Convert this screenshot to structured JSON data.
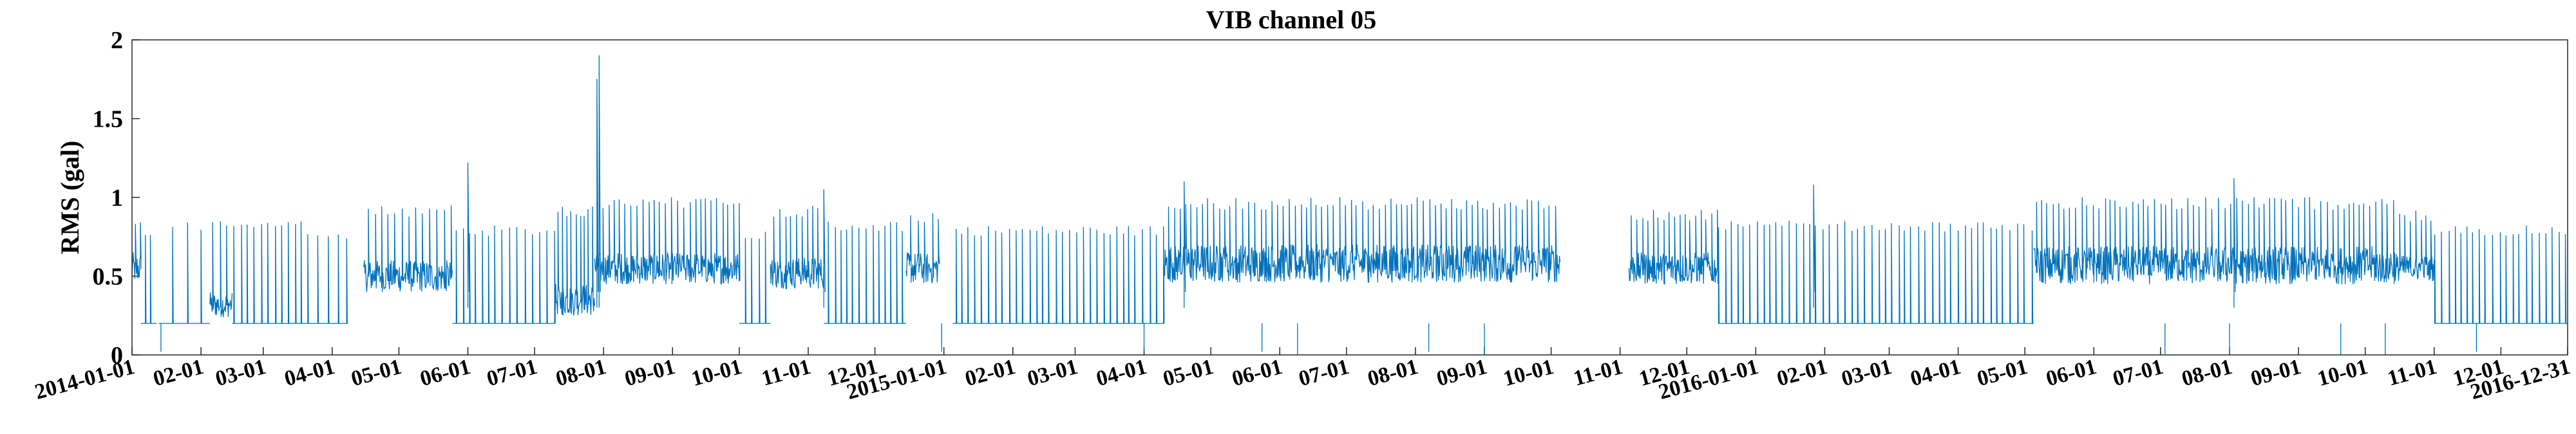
{
  "chart_data": {
    "type": "line",
    "title": "VIB channel 05",
    "ylabel": "RMS (gal)",
    "xlabel": "",
    "ylim": [
      0,
      2
    ],
    "y_ticks": [
      "0",
      "0.5",
      "1",
      "1.5",
      "2"
    ],
    "x_range": [
      "2014-01-01",
      "2016-12-31"
    ],
    "x_tick_labels": [
      {
        "date": "2014-01-01",
        "label": "2014-01-01"
      },
      {
        "date": "2014-02-01",
        "label": "02-01"
      },
      {
        "date": "2014-03-01",
        "label": "03-01"
      },
      {
        "date": "2014-04-01",
        "label": "04-01"
      },
      {
        "date": "2014-05-01",
        "label": "05-01"
      },
      {
        "date": "2014-06-01",
        "label": "06-01"
      },
      {
        "date": "2014-07-01",
        "label": "07-01"
      },
      {
        "date": "2014-08-01",
        "label": "08-01"
      },
      {
        "date": "2014-09-01",
        "label": "09-01"
      },
      {
        "date": "2014-10-01",
        "label": "10-01"
      },
      {
        "date": "2014-11-01",
        "label": "11-01"
      },
      {
        "date": "2014-12-01",
        "label": "12-01"
      },
      {
        "date": "2015-01-01",
        "label": "2015-01-01"
      },
      {
        "date": "2015-02-01",
        "label": "02-01"
      },
      {
        "date": "2015-03-01",
        "label": "03-01"
      },
      {
        "date": "2015-04-01",
        "label": "04-01"
      },
      {
        "date": "2015-05-01",
        "label": "05-01"
      },
      {
        "date": "2015-06-01",
        "label": "06-01"
      },
      {
        "date": "2015-07-01",
        "label": "07-01"
      },
      {
        "date": "2015-08-01",
        "label": "08-01"
      },
      {
        "date": "2015-09-01",
        "label": "09-01"
      },
      {
        "date": "2015-10-01",
        "label": "10-01"
      },
      {
        "date": "2015-11-01",
        "label": "11-01"
      },
      {
        "date": "2015-12-01",
        "label": "12-01"
      },
      {
        "date": "2016-01-01",
        "label": "2016-01-01"
      },
      {
        "date": "2016-02-01",
        "label": "02-01"
      },
      {
        "date": "2016-03-01",
        "label": "03-01"
      },
      {
        "date": "2016-04-01",
        "label": "04-01"
      },
      {
        "date": "2016-05-01",
        "label": "05-01"
      },
      {
        "date": "2016-06-01",
        "label": "06-01"
      },
      {
        "date": "2016-07-01",
        "label": "07-01"
      },
      {
        "date": "2016-08-01",
        "label": "08-01"
      },
      {
        "date": "2016-09-01",
        "label": "09-01"
      },
      {
        "date": "2016-10-01",
        "label": "10-01"
      },
      {
        "date": "2016-11-01",
        "label": "11-01"
      },
      {
        "date": "2016-12-01",
        "label": "12-01"
      },
      {
        "date": "2016-12-31",
        "label": "2016-12-31"
      }
    ],
    "line_color": "#0072bd",
    "grid": false,
    "legend": "none",
    "series": [
      {
        "segments": [
          {
            "start": "2014-01-01",
            "end": "2014-01-05",
            "base": 0.2,
            "level": 0.55,
            "noise": 0.1,
            "spike_every_days": 2,
            "spike_height": 0.85
          },
          {
            "start": "2014-01-05",
            "end": "2014-01-12",
            "base": 0.2,
            "level": 0.2,
            "noise": 0.0,
            "spike_every_days": 2.5,
            "spike_height": 0.8
          },
          {
            "start": "2014-01-13",
            "end": "2014-02-05",
            "base": 0.2,
            "level": 0.2,
            "noise": 0.0,
            "spike_every_days": 7,
            "spike_height": 0.85
          },
          {
            "start": "2014-02-05",
            "end": "2014-02-15",
            "base": 0.2,
            "level": 0.32,
            "noise": 0.08,
            "spike_every_days": 3,
            "spike_height": 0.85
          },
          {
            "start": "2014-02-15",
            "end": "2014-03-20",
            "base": 0.2,
            "level": 0.2,
            "noise": 0.0,
            "spike_every_days": 3,
            "spike_height": 0.85
          },
          {
            "start": "2014-03-20",
            "end": "2014-04-08",
            "base": 0.0,
            "level": 0.2,
            "noise": 0.0,
            "spike_every_days": 4,
            "spike_height": 0.8
          },
          {
            "start": "2014-04-15",
            "end": "2014-05-25",
            "base": 0.2,
            "level": 0.5,
            "noise": 0.1,
            "spike_every_days": 3,
            "spike_height": 0.95
          },
          {
            "start": "2014-05-25",
            "end": "2014-07-10",
            "base": 0.2,
            "level": 0.2,
            "noise": 0.0,
            "spike_every_days": 3,
            "spike_height": 0.82
          },
          {
            "start": "2014-07-10",
            "end": "2014-07-28",
            "base": 0.2,
            "level": 0.35,
            "noise": 0.1,
            "spike_every_days": 2,
            "spike_height": 0.95
          },
          {
            "start": "2014-07-28",
            "end": "2014-10-01",
            "base": 0.2,
            "level": 0.55,
            "noise": 0.1,
            "spike_every_days": 2.5,
            "spike_height": 1.0
          },
          {
            "start": "2014-10-01",
            "end": "2014-10-15",
            "base": 0.2,
            "level": 0.2,
            "noise": 0.0,
            "spike_every_days": 3,
            "spike_height": 0.8
          },
          {
            "start": "2014-10-15",
            "end": "2014-11-08",
            "base": 0.2,
            "level": 0.52,
            "noise": 0.1,
            "spike_every_days": 2.5,
            "spike_height": 0.95
          },
          {
            "start": "2014-11-08",
            "end": "2014-12-15",
            "base": 0.2,
            "level": 0.2,
            "noise": 0.0,
            "spike_every_days": 3,
            "spike_height": 0.85
          },
          {
            "start": "2014-12-15",
            "end": "2014-12-30",
            "base": 0.2,
            "level": 0.55,
            "noise": 0.1,
            "spike_every_days": 3,
            "spike_height": 0.9
          },
          {
            "start": "2015-01-05",
            "end": "2015-04-10",
            "base": 0.2,
            "level": 0.2,
            "noise": 0.0,
            "spike_every_days": 3,
            "spike_height": 0.82
          },
          {
            "start": "2015-04-10",
            "end": "2015-10-05",
            "base": 0.2,
            "level": 0.58,
            "noise": 0.12,
            "spike_every_days": 2.5,
            "spike_height": 1.0
          },
          {
            "start": "2015-11-05",
            "end": "2015-12-15",
            "base": 0.2,
            "level": 0.55,
            "noise": 0.1,
            "spike_every_days": 2.5,
            "spike_height": 0.92
          },
          {
            "start": "2015-12-15",
            "end": "2016-02-01",
            "base": 0.2,
            "level": 0.2,
            "noise": 0.0,
            "spike_every_days": 3,
            "spike_height": 0.85
          },
          {
            "start": "2016-02-01",
            "end": "2016-05-05",
            "base": 0.2,
            "level": 0.2,
            "noise": 0.0,
            "spike_every_days": 3,
            "spike_height": 0.85
          },
          {
            "start": "2016-05-05",
            "end": "2016-10-15",
            "base": 0.2,
            "level": 0.57,
            "noise": 0.12,
            "spike_every_days": 2.5,
            "spike_height": 1.0
          },
          {
            "start": "2016-10-15",
            "end": "2016-11-01",
            "base": 0.2,
            "level": 0.55,
            "noise": 0.08,
            "spike_every_days": 2.5,
            "spike_height": 0.92
          },
          {
            "start": "2016-11-01",
            "end": "2016-12-31",
            "base": 0.2,
            "level": 0.2,
            "noise": 0.0,
            "spike_every_days": 3,
            "spike_height": 0.82
          }
        ],
        "peaks": [
          {
            "date": "2014-06-01",
            "value": 1.22
          },
          {
            "date": "2014-07-29",
            "value": 1.75
          },
          {
            "date": "2014-07-30",
            "value": 1.9
          },
          {
            "date": "2014-11-08",
            "value": 1.05
          },
          {
            "date": "2015-04-19",
            "value": 1.1
          },
          {
            "date": "2016-01-27",
            "value": 1.08
          },
          {
            "date": "2016-08-03",
            "value": 1.12
          }
        ],
        "drops": [
          {
            "date": "2014-01-14",
            "value": 0.02
          },
          {
            "date": "2014-12-31",
            "value": 0.02
          },
          {
            "date": "2015-04-01",
            "value": 0.02
          },
          {
            "date": "2015-05-24",
            "value": 0.02
          },
          {
            "date": "2015-06-09",
            "value": 0.0
          },
          {
            "date": "2015-08-07",
            "value": 0.02
          },
          {
            "date": "2015-09-01",
            "value": 0.0
          },
          {
            "date": "2016-07-03",
            "value": 0.0
          },
          {
            "date": "2016-08-01",
            "value": 0.0
          },
          {
            "date": "2016-09-20",
            "value": 0.0
          },
          {
            "date": "2016-10-10",
            "value": 0.0
          },
          {
            "date": "2016-11-20",
            "value": 0.02
          }
        ]
      }
    ]
  }
}
